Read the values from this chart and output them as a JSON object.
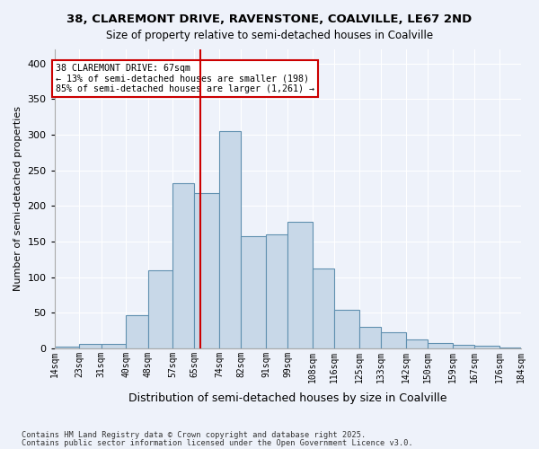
{
  "title_line1": "38, CLAREMONT DRIVE, RAVENSTONE, COALVILLE, LE67 2ND",
  "title_line2": "Size of property relative to semi-detached houses in Coalville",
  "xlabel": "Distribution of semi-detached houses by size in Coalville",
  "ylabel": "Number of semi-detached properties",
  "footnote1": "Contains HM Land Registry data © Crown copyright and database right 2025.",
  "footnote2": "Contains public sector information licensed under the Open Government Licence v3.0.",
  "annotation_title": "38 CLAREMONT DRIVE: 67sqm",
  "annotation_line2": "← 13% of semi-detached houses are smaller (198)",
  "annotation_line3": "85% of semi-detached houses are larger (1,261) →",
  "subject_value": 67,
  "bins": [
    14,
    23,
    31,
    40,
    48,
    57,
    65,
    74,
    82,
    91,
    99,
    108,
    116,
    125,
    133,
    142,
    150,
    159,
    167,
    176,
    184
  ],
  "counts": [
    2,
    6,
    6,
    46,
    110,
    232,
    218,
    305,
    158,
    160,
    178,
    112,
    54,
    30,
    22,
    12,
    7,
    5,
    3,
    1
  ],
  "bar_color": "#c8d8e8",
  "bar_edge_color": "#6090b0",
  "subject_line_color": "#cc0000",
  "annotation_box_color": "#cc0000",
  "background_color": "#eef2fa",
  "grid_color": "#ffffff",
  "ylim": [
    0,
    420
  ],
  "yticks": [
    0,
    50,
    100,
    150,
    200,
    250,
    300,
    350,
    400
  ]
}
